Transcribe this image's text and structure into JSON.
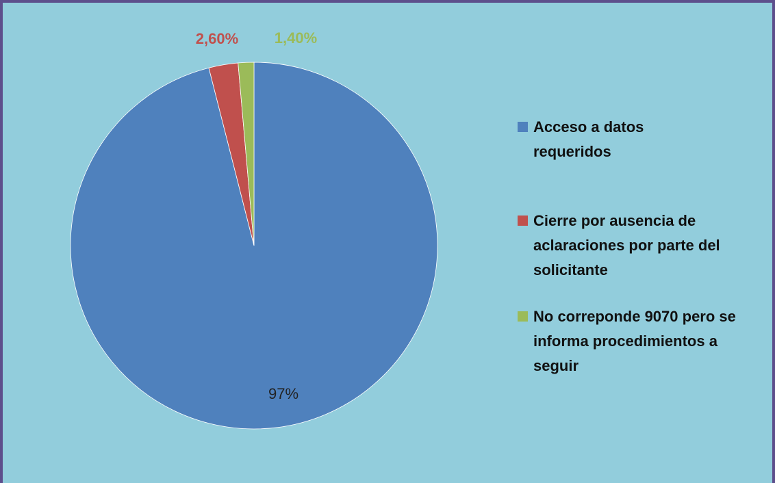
{
  "chart_data": {
    "type": "pie",
    "categories": [
      "Acceso a datos requeridos",
      "Cierre por ausencia de aclaraciones por parte del solicitante",
      "No correponde 9070 pero se informa procedimientos a seguir"
    ],
    "values": [
      97,
      2.6,
      1.4
    ],
    "value_labels": [
      "97%",
      "2,60%",
      "1,40%"
    ],
    "colors": [
      "#4f81bd",
      "#c0504d",
      "#9bbb59"
    ],
    "legend": "right"
  }
}
